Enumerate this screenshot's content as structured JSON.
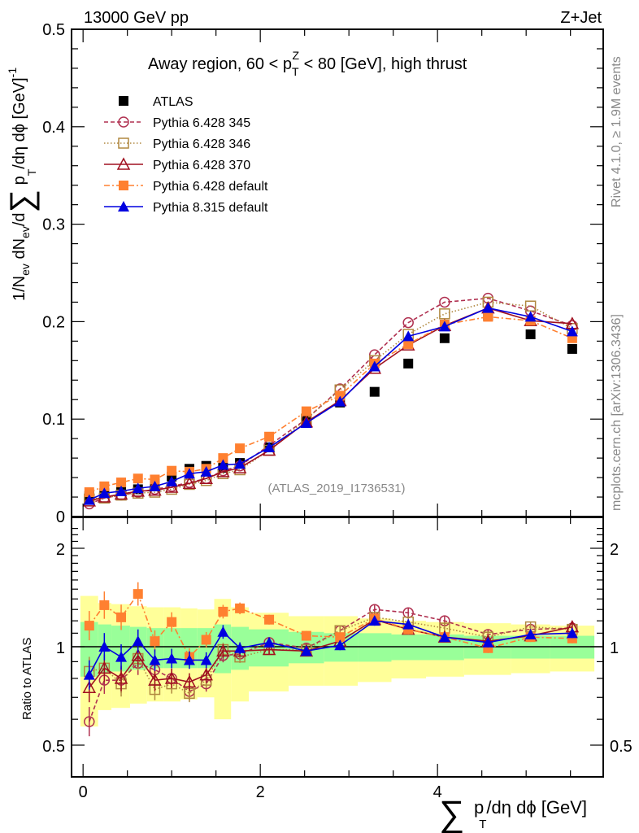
{
  "chart_data": [
    {
      "type": "line",
      "panel": "main",
      "title": "Away region, 60 < p_T^Z < 80 [GeV], high thrust",
      "top_left_label": "13000 GeV pp",
      "top_right_label": "Z+Jet",
      "watermark": "(ATLAS_2019_I1736531)",
      "side_label_top": "Rivet 4.1.0, ≥ 1.9M events",
      "side_label_bottom": "mcplots.cern.ch [arXiv:1306.3436]",
      "ylabel": "1/N_ev dN_ev/d∑ p_T/dη dφ [GeV]^-1",
      "xlabel": "∑ p_T/dη dφ [GeV]",
      "xlim": [
        -0.13,
        5.87
      ],
      "ylim": [
        0,
        0.5
      ],
      "yticks": [
        "0",
        "0.1",
        "0.2",
        "0.3",
        "0.4",
        "0.5"
      ],
      "xticks": [
        "0",
        "2",
        "4"
      ],
      "x": [
        0.07,
        0.24,
        0.43,
        0.62,
        0.81,
        1.0,
        1.2,
        1.39,
        1.58,
        1.77,
        2.1,
        2.52,
        2.9,
        3.29,
        3.67,
        4.08,
        4.57,
        5.05,
        5.52
      ],
      "series": [
        {
          "name": "ATLAS",
          "color": "#000000",
          "marker": "square-filled",
          "line": "none",
          "values": [
            0.021,
            0.024,
            0.028,
            0.028,
            0.034,
            0.041,
            0.049,
            0.052,
            0.05,
            0.055,
            0.071,
            0.1,
            0.117,
            0.128,
            0.157,
            0.183,
            0.206,
            0.187,
            0.172
          ]
        },
        {
          "name": "Pythia 6.428 345",
          "color": "#b03050",
          "marker": "circle-open",
          "line": "dashed",
          "values": [
            0.013,
            0.019,
            0.022,
            0.025,
            0.028,
            0.031,
            0.035,
            0.039,
            0.047,
            0.052,
            0.073,
            0.1,
            0.131,
            0.166,
            0.199,
            0.22,
            0.224,
            0.211,
            0.196
          ]
        },
        {
          "name": "Pythia 6.428 346",
          "color": "#b08840",
          "marker": "square-open",
          "line": "dotted",
          "values": [
            0.018,
            0.019,
            0.022,
            0.024,
            0.025,
            0.028,
            0.033,
            0.037,
            0.044,
            0.048,
            0.068,
            0.1,
            0.13,
            0.16,
            0.187,
            0.208,
            0.22,
            0.216,
            0.193
          ]
        },
        {
          "name": "Pythia 6.428 370",
          "color": "#a01020",
          "marker": "triangle-open",
          "line": "solid",
          "values": [
            0.016,
            0.02,
            0.023,
            0.026,
            0.027,
            0.03,
            0.034,
            0.039,
            0.046,
            0.05,
            0.068,
            0.097,
            0.119,
            0.152,
            0.176,
            0.196,
            0.214,
            0.201,
            0.198
          ]
        },
        {
          "name": "Pythia 6.428 default",
          "color": "#ff8030",
          "marker": "square-filled",
          "line": "dashdot",
          "values": [
            0.025,
            0.031,
            0.035,
            0.039,
            0.038,
            0.047,
            0.046,
            0.049,
            0.06,
            0.07,
            0.082,
            0.108,
            0.124,
            0.157,
            0.177,
            0.197,
            0.205,
            0.201,
            0.183
          ]
        },
        {
          "name": "Pythia 8.315 default",
          "color": "#0000e0",
          "marker": "triangle-filled",
          "line": "solid",
          "values": [
            0.017,
            0.024,
            0.026,
            0.029,
            0.031,
            0.036,
            0.044,
            0.046,
            0.053,
            0.054,
            0.071,
            0.096,
            0.118,
            0.154,
            0.185,
            0.195,
            0.214,
            0.205,
            0.19
          ]
        }
      ],
      "legend_position": "top-left"
    },
    {
      "type": "line",
      "panel": "ratio",
      "ylabel": "Ratio to ATLAS",
      "yscale": "log",
      "ylim": [
        0.45,
        2.35
      ],
      "yticks": [
        "0.5",
        "1",
        "2"
      ],
      "x": [
        0.07,
        0.24,
        0.43,
        0.62,
        0.81,
        1.0,
        1.2,
        1.39,
        1.58,
        1.77,
        2.1,
        2.52,
        2.9,
        3.29,
        3.67,
        4.08,
        4.57,
        5.05,
        5.52
      ],
      "bin_edges": [
        -0.03,
        0.17,
        0.32,
        0.53,
        0.72,
        0.91,
        1.1,
        1.29,
        1.48,
        1.67,
        1.87,
        2.32,
        2.72,
        3.1,
        3.48,
        3.87,
        4.3,
        4.83,
        5.27,
        5.77
      ],
      "band_total": [
        0.43,
        0.36,
        0.35,
        0.33,
        0.32,
        0.32,
        0.31,
        0.3,
        0.4,
        0.32,
        0.27,
        0.24,
        0.24,
        0.22,
        0.2,
        0.19,
        0.18,
        0.17,
        0.16
      ],
      "band_stat": [
        0.19,
        0.17,
        0.16,
        0.15,
        0.14,
        0.14,
        0.14,
        0.14,
        0.17,
        0.15,
        0.13,
        0.11,
        0.1,
        0.1,
        0.09,
        0.09,
        0.08,
        0.08,
        0.08
      ],
      "series": [
        {
          "name": "Pythia 6.428 345",
          "values": [
            0.59,
            0.79,
            0.79,
            0.89,
            0.85,
            0.8,
            0.73,
            0.77,
            0.94,
            0.95,
            1.03,
            0.99,
            1.12,
            1.3,
            1.27,
            1.2,
            1.09,
            1.13,
            1.14
          ]
        },
        {
          "name": "Pythia 6.428 346",
          "values": [
            0.84,
            0.86,
            0.77,
            0.92,
            0.74,
            0.77,
            0.72,
            0.79,
            0.98,
            0.93,
            0.98,
            0.98,
            1.12,
            1.23,
            1.19,
            1.14,
            1.07,
            1.15,
            1.13
          ]
        },
        {
          "name": "Pythia 6.428 370",
          "values": [
            0.75,
            0.86,
            0.8,
            0.94,
            0.79,
            0.8,
            0.78,
            0.82,
            0.97,
            0.97,
            0.98,
            0.97,
            1.04,
            1.21,
            1.13,
            1.07,
            1.04,
            1.08,
            1.15
          ]
        },
        {
          "name": "Pythia 6.428 default",
          "values": [
            1.16,
            1.34,
            1.23,
            1.45,
            1.04,
            1.19,
            0.93,
            1.05,
            1.28,
            1.31,
            1.21,
            1.08,
            1.07,
            1.22,
            1.13,
            1.07,
            0.99,
            1.07,
            1.06
          ]
        },
        {
          "name": "Pythia 8.315 default",
          "values": [
            0.82,
            1.0,
            0.93,
            1.04,
            0.91,
            0.92,
            0.91,
            0.91,
            1.11,
            0.99,
            1.03,
            0.97,
            1.01,
            1.2,
            1.17,
            1.07,
            1.03,
            1.09,
            1.1
          ]
        }
      ]
    }
  ]
}
